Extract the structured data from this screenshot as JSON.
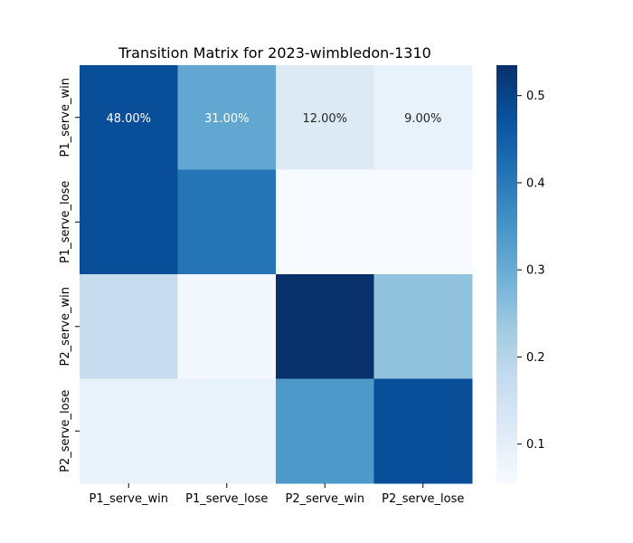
{
  "chart_data": {
    "type": "heatmap",
    "title": "Transition Matrix for 2023-wimbledon-1310",
    "xlabel": "",
    "ylabel": "",
    "row_labels": [
      "P1_serve_win",
      "P1_serve_lose",
      "P2_serve_win",
      "P2_serve_lose"
    ],
    "col_labels": [
      "P1_serve_win",
      "P1_serve_lose",
      "P2_serve_win",
      "P2_serve_lose"
    ],
    "values": [
      [
        0.48,
        0.31,
        0.12,
        0.09
      ],
      [
        0.48,
        0.41,
        0.055,
        0.055
      ],
      [
        0.17,
        0.065,
        0.535,
        0.25
      ],
      [
        0.09,
        0.09,
        0.34,
        0.48
      ]
    ],
    "annotations": [
      [
        "48.00%",
        "31.00%",
        "12.00%",
        "9.00%"
      ],
      [
        "",
        "",
        "",
        ""
      ],
      [
        "",
        "",
        "",
        ""
      ],
      [
        "",
        "",
        "",
        ""
      ]
    ],
    "colormap": "Blues",
    "vmin": 0.055,
    "vmax": 0.535,
    "colorbar": {
      "ticks": [
        0.1,
        0.2,
        0.3,
        0.4,
        0.5
      ],
      "tick_labels": [
        "0.1",
        "0.2",
        "0.3",
        "0.4",
        "0.5"
      ]
    },
    "grid": false
  }
}
